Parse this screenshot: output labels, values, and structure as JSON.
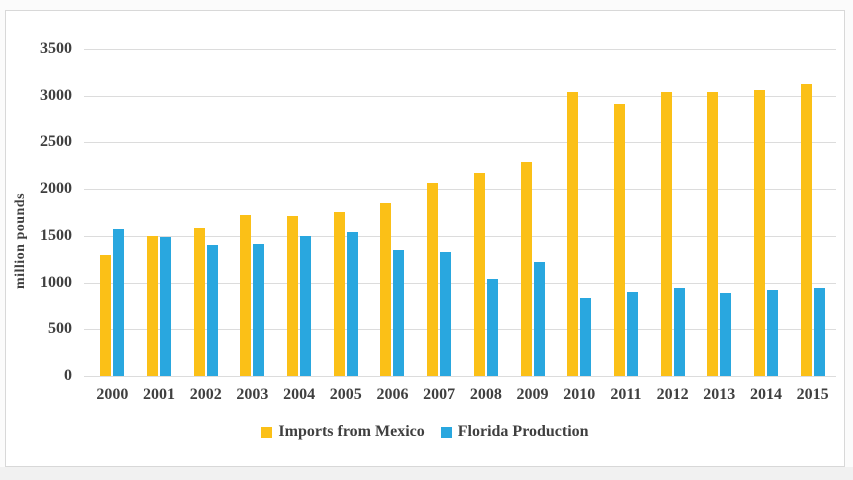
{
  "chart_data": {
    "type": "bar",
    "title": "",
    "xlabel": "",
    "ylabel": "million pounds",
    "categories": [
      "2000",
      "2001",
      "2002",
      "2003",
      "2004",
      "2005",
      "2006",
      "2007",
      "2008",
      "2009",
      "2010",
      "2011",
      "2012",
      "2013",
      "2014",
      "2015"
    ],
    "series": [
      {
        "name": "Imports from Mexico",
        "color": "#fbc017",
        "values": [
          1290,
          1500,
          1580,
          1720,
          1710,
          1755,
          1850,
          2070,
          2170,
          2290,
          3035,
          2915,
          3035,
          3035,
          3060,
          3130
        ]
      },
      {
        "name": "Florida Production",
        "color": "#29a7df",
        "values": [
          1570,
          1490,
          1400,
          1410,
          1500,
          1540,
          1345,
          1325,
          1040,
          1220,
          840,
          900,
          945,
          885,
          920,
          940
        ]
      }
    ],
    "ylim": [
      0,
      3500
    ],
    "yticks": [
      0,
      500,
      1000,
      1500,
      2000,
      2500,
      3000,
      3500
    ],
    "grid": true,
    "legend_position": "bottom",
    "axis_text_color": "#3f3f3f",
    "gridline_color": "#dcdcdc",
    "frame_border_color": "#d8d8d8"
  }
}
